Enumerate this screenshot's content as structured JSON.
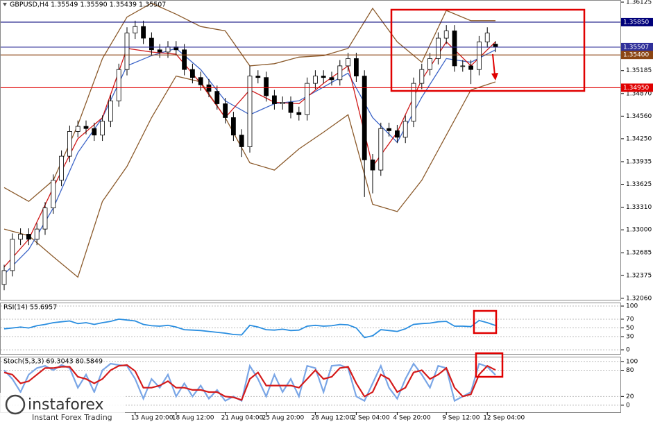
{
  "chart_data": [
    {
      "type": "candlestick",
      "title": "GBPUSD,H4  1.35549 1.35590 1.35439 1.35507",
      "categories": [
        null,
        null,
        null,
        null,
        null,
        null,
        null,
        null,
        null,
        null,
        null,
        null,
        null,
        null,
        null,
        null,
        "13 Aug 20:00",
        null,
        null,
        null,
        null,
        "18 Aug 12:00",
        null,
        null,
        null,
        null,
        null,
        "21 Aug 04:00",
        null,
        null,
        null,
        null,
        "25 Aug 20:00",
        null,
        null,
        null,
        null,
        null,
        "28 Aug 12:00",
        null,
        null,
        null,
        null,
        "2 Sep 04:00",
        null,
        null,
        null,
        null,
        "4 Sep 20:00",
        null,
        null,
        null,
        null,
        null,
        "9 Sep 12:00",
        null,
        null,
        null,
        null,
        "12 Sep 04:00",
        null
      ],
      "open": [
        1.3225,
        1.3244,
        1.3287,
        1.3294,
        1.3287,
        1.3301,
        1.333,
        1.3368,
        1.3401,
        1.3435,
        1.3442,
        1.3439,
        1.343,
        1.3449,
        1.3477,
        1.352,
        1.357,
        1.3579,
        1.3563,
        1.3547,
        1.3544,
        1.3551,
        1.3547,
        1.352,
        1.3509,
        1.3499,
        1.349,
        1.3473,
        1.3454,
        1.343,
        1.3414,
        1.3511,
        1.3509,
        1.3484,
        1.3473,
        1.3475,
        1.3461,
        1.3458,
        1.3501,
        1.3511,
        1.3509,
        1.3506,
        1.3525,
        1.3535,
        1.3511,
        1.3396,
        1.3382,
        1.3439,
        1.3436,
        1.3427,
        1.3449,
        1.3501,
        1.352,
        1.3535,
        1.3563,
        1.3573,
        1.3525,
        1.3525,
        1.352,
        1.3558,
        1.35549
      ],
      "high": [
        1.3252,
        1.3295,
        1.3302,
        1.3302,
        1.3309,
        1.3338,
        1.3376,
        1.3409,
        1.3443,
        1.345,
        1.345,
        1.3447,
        1.3457,
        1.3485,
        1.3528,
        1.3578,
        1.3587,
        1.3587,
        1.3571,
        1.3555,
        1.3559,
        1.3559,
        1.3555,
        1.3528,
        1.3517,
        1.3507,
        1.3498,
        1.3481,
        1.3462,
        1.3438,
        1.3525,
        1.3519,
        1.3517,
        1.3492,
        1.3483,
        1.3483,
        1.3469,
        1.3509,
        1.3519,
        1.3519,
        1.3517,
        1.3533,
        1.3543,
        1.3543,
        1.3519,
        1.3404,
        1.3447,
        1.3447,
        1.3444,
        1.3457,
        1.3509,
        1.3528,
        1.3543,
        1.3571,
        1.3581,
        1.3581,
        1.3533,
        1.3533,
        1.3566,
        1.3578,
        1.3559
      ],
      "low": [
        1.3217,
        1.3236,
        1.3279,
        1.3279,
        1.3279,
        1.3293,
        1.3322,
        1.336,
        1.3393,
        1.3427,
        1.3431,
        1.3422,
        1.3422,
        1.3441,
        1.3469,
        1.3512,
        1.3562,
        1.3555,
        1.3539,
        1.3536,
        1.3536,
        1.3539,
        1.3512,
        1.3501,
        1.3491,
        1.3482,
        1.3465,
        1.3446,
        1.3422,
        1.34,
        1.3406,
        1.3501,
        1.3476,
        1.3465,
        1.3465,
        1.3453,
        1.345,
        1.345,
        1.3493,
        1.3501,
        1.3498,
        1.3498,
        1.3517,
        1.3503,
        1.3345,
        1.335,
        1.3374,
        1.3428,
        1.3419,
        1.3419,
        1.3441,
        1.3493,
        1.3512,
        1.3527,
        1.3555,
        1.3517,
        1.3517,
        1.35,
        1.3512,
        1.355,
        1.35439
      ],
      "close": [
        1.3244,
        1.3287,
        1.3294,
        1.3287,
        1.3301,
        1.333,
        1.3368,
        1.3401,
        1.3435,
        1.3442,
        1.3439,
        1.343,
        1.3449,
        1.3477,
        1.352,
        1.357,
        1.3579,
        1.3563,
        1.3547,
        1.3544,
        1.3551,
        1.3547,
        1.352,
        1.3509,
        1.3499,
        1.349,
        1.3473,
        1.3454,
        1.343,
        1.3414,
        1.3511,
        1.3509,
        1.3484,
        1.3473,
        1.3475,
        1.3461,
        1.3458,
        1.3501,
        1.3511,
        1.3509,
        1.3506,
        1.3525,
        1.3535,
        1.3511,
        1.3396,
        1.3382,
        1.3439,
        1.3436,
        1.3427,
        1.3449,
        1.3501,
        1.352,
        1.3535,
        1.3563,
        1.3573,
        1.3525,
        1.3525,
        1.352,
        1.3558,
        1.357,
        1.35507
      ],
      "up_color": "#ffffff",
      "down_color": "#000000",
      "overlays": [
        {
          "color": "#8b5a2b",
          "x": [
            0,
            3,
            6,
            9,
            12,
            15,
            18,
            21,
            24,
            27,
            30,
            33,
            36,
            39,
            42,
            45,
            48,
            51,
            54,
            57,
            60
          ],
          "values": [
            1.3358,
            1.3339,
            1.3368,
            1.3444,
            1.3535,
            1.3592,
            1.3611,
            1.3596,
            1.3579,
            1.3573,
            1.3525,
            1.3528,
            1.3537,
            1.3539,
            1.3549,
            1.3604,
            1.3558,
            1.353,
            1.3601,
            1.3587,
            1.3587
          ]
        },
        {
          "color": "#8b5a2b",
          "x": [
            0,
            3,
            6,
            9,
            12,
            15,
            18,
            21,
            24,
            27,
            30,
            33,
            36,
            39,
            42,
            45,
            48,
            51,
            54,
            57,
            60
          ],
          "values": [
            1.3301,
            1.3292,
            1.3263,
            1.3235,
            1.3339,
            1.3387,
            1.3454,
            1.3511,
            1.3503,
            1.3454,
            1.3392,
            1.3382,
            1.3411,
            1.3434,
            1.3458,
            1.3335,
            1.3325,
            1.3368,
            1.343,
            1.3492,
            1.3503
          ]
        },
        {
          "color": "#3c64c8",
          "x": [
            0,
            3,
            6,
            9,
            12,
            15,
            18,
            21,
            24,
            27,
            30,
            33,
            36,
            39,
            42,
            45,
            48,
            51,
            54,
            57,
            60
          ],
          "values": [
            1.3239,
            1.3273,
            1.333,
            1.3406,
            1.3454,
            1.3525,
            1.3539,
            1.3549,
            1.352,
            1.3477,
            1.3458,
            1.3473,
            1.3477,
            1.3496,
            1.3515,
            1.3454,
            1.342,
            1.3482,
            1.3535,
            1.353,
            1.3547
          ]
        },
        {
          "color": "#d01818",
          "x": [
            0,
            3,
            6,
            9,
            12,
            15,
            18,
            21,
            24,
            27,
            30,
            33,
            36,
            39,
            42,
            45,
            48,
            51,
            54,
            57,
            60
          ],
          "values": [
            1.3249,
            1.3287,
            1.3358,
            1.3425,
            1.3454,
            1.3549,
            1.3544,
            1.3541,
            1.3501,
            1.3454,
            1.3492,
            1.3475,
            1.3473,
            1.3501,
            1.3525,
            1.3387,
            1.3434,
            1.3506,
            1.3558,
            1.3525,
            1.3558
          ]
        }
      ],
      "levels": [
        {
          "value": 1.3585,
          "label": "1.35850",
          "color": "#00007a"
        },
        {
          "value": 1.35507,
          "label": "1.35507",
          "color": "#30309a"
        },
        {
          "value": 1.354,
          "label": "1.35400",
          "color": "#8b4513"
        },
        {
          "value": 1.3495,
          "label": "1.34950",
          "color": "#e00000"
        }
      ],
      "ylim": [
        1.3203,
        1.36154
      ],
      "yticks": [
        {
          "value": 1.36125,
          "label": "1.36125"
        },
        {
          "value": 1.35185,
          "label": "1.35185"
        },
        {
          "value": 1.3487,
          "label": "1.34870"
        },
        {
          "value": 1.3456,
          "label": "1.34560"
        },
        {
          "value": 1.3425,
          "label": "1.34250"
        },
        {
          "value": 1.33935,
          "label": "1.33935"
        },
        {
          "value": 1.33625,
          "label": "1.33625"
        },
        {
          "value": 1.3331,
          "label": "1.33310"
        },
        {
          "value": 1.33,
          "label": "1.33000"
        },
        {
          "value": 1.32685,
          "label": "1.32685"
        },
        {
          "value": 1.32375,
          "label": "1.32375"
        },
        {
          "value": 1.3206,
          "label": "1.32060"
        }
      ],
      "grid": false
    },
    {
      "type": "line",
      "title": "RSI(14) 55.6957",
      "series": [
        {
          "color": "#2a8ee0",
          "values": [
            48,
            50,
            52,
            50,
            55,
            58,
            62,
            64,
            66,
            60,
            62,
            58,
            62,
            65,
            70,
            68,
            66,
            58,
            55,
            54,
            56,
            52,
            46,
            45,
            44,
            42,
            40,
            38,
            35,
            34,
            56,
            52,
            46,
            45,
            47,
            44,
            45,
            54,
            56,
            54,
            55,
            58,
            57,
            50,
            28,
            32,
            46,
            44,
            42,
            48,
            58,
            60,
            61,
            64,
            65,
            54,
            54,
            53,
            67,
            62,
            55.6957
          ]
        }
      ],
      "ylim": [
        -11,
        108
      ],
      "yticks": [
        100,
        70,
        50,
        30,
        0
      ],
      "grid": true
    },
    {
      "type": "line",
      "title": "Stoch(5,3,3) 69.3043 80.5849",
      "series": [
        {
          "color": "#7aa6e6",
          "values": [
            80,
            60,
            30,
            70,
            85,
            90,
            80,
            92,
            85,
            40,
            70,
            30,
            80,
            95,
            92,
            90,
            60,
            15,
            60,
            40,
            70,
            20,
            50,
            20,
            45,
            15,
            35,
            10,
            20,
            10,
            90,
            60,
            20,
            70,
            30,
            60,
            20,
            90,
            85,
            30,
            90,
            92,
            85,
            20,
            10,
            50,
            90,
            40,
            15,
            60,
            95,
            70,
            40,
            90,
            85,
            10,
            20,
            30,
            95,
            88,
            69.3043
          ]
        },
        {
          "color": "#d41a1a",
          "values": [
            75,
            70,
            50,
            55,
            70,
            85,
            85,
            88,
            88,
            65,
            60,
            50,
            60,
            80,
            90,
            92,
            78,
            40,
            40,
            45,
            55,
            40,
            40,
            35,
            35,
            30,
            30,
            20,
            18,
            12,
            60,
            75,
            45,
            45,
            45,
            45,
            40,
            60,
            80,
            60,
            65,
            85,
            88,
            50,
            20,
            30,
            70,
            60,
            30,
            40,
            75,
            80,
            60,
            70,
            85,
            40,
            20,
            25,
            70,
            90,
            80.5849
          ]
        }
      ],
      "ylim": [
        -16,
        111
      ],
      "yticks": [
        100,
        80,
        20,
        0
      ],
      "grid": true
    }
  ],
  "watermark": {
    "name": "instaforex",
    "tagline": "Instant Forex Trading"
  }
}
